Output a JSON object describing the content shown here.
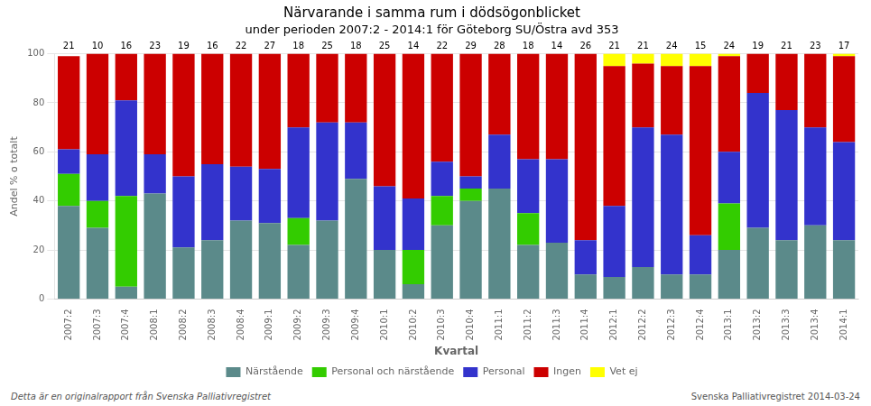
{
  "chart_data": {
    "type": "bar",
    "stacked": true,
    "title": "Närvarande i samma rum i dödsögonblicket",
    "subtitle": "under perioden 2007:2 - 2014:1 för Göteborg SU/Östra avd 353",
    "xlabel": "Kvartal",
    "ylabel": "Andel % o totalt",
    "categories": [
      "2007:2",
      "2007:3",
      "2007:4",
      "2008:1",
      "2008:2",
      "2008:3",
      "2008:4",
      "2009:1",
      "2009:2",
      "2009:3",
      "2009:4",
      "2010:1",
      "2010:2",
      "2010:3",
      "2010:4",
      "2011:1",
      "2011:2",
      "2011:3",
      "2011:4",
      "2012:1",
      "2012:2",
      "2012:3",
      "2012:4",
      "2013:1",
      "2013:2",
      "2013:3",
      "2013:4",
      "2014:1"
    ],
    "series": [
      {
        "name": "Närstående",
        "color": "#5B8A8A",
        "values": [
          38,
          29,
          5,
          43,
          21,
          24,
          32,
          31,
          22,
          32,
          49,
          20,
          6,
          30,
          40,
          45,
          22,
          23,
          10,
          9,
          13,
          10,
          10,
          20,
          29,
          24,
          30,
          24
        ]
      },
      {
        "name": "Personal och närstående",
        "color": "#33CC00",
        "values": [
          13,
          11,
          37,
          0,
          0,
          0,
          0,
          0,
          11,
          0,
          0,
          0,
          14,
          12,
          5,
          0,
          13,
          0,
          0,
          0,
          0,
          0,
          0,
          19,
          0,
          0,
          0,
          0
        ]
      },
      {
        "name": "Personal",
        "color": "#3333CC",
        "values": [
          10,
          19,
          39,
          16,
          29,
          31,
          22,
          22,
          37,
          40,
          23,
          26,
          21,
          14,
          5,
          22,
          22,
          34,
          14,
          29,
          57,
          57,
          16,
          21,
          55,
          53,
          40,
          40
        ]
      },
      {
        "name": "Ingen",
        "color": "#CC0000",
        "values": [
          38,
          41,
          19,
          41,
          50,
          45,
          46,
          47,
          30,
          28,
          28,
          54,
          59,
          44,
          50,
          33,
          43,
          43,
          76,
          57,
          26,
          28,
          69,
          39,
          16,
          23,
          30,
          35
        ]
      },
      {
        "name": "Vet ej",
        "color": "#FFFF00",
        "values": [
          0,
          0,
          0,
          0,
          0,
          0,
          0,
          0,
          0,
          0,
          0,
          0,
          0,
          0,
          0,
          0,
          0,
          0,
          0,
          5,
          4,
          5,
          5,
          1,
          0,
          0,
          0,
          1
        ]
      }
    ],
    "n_values": [
      21,
      10,
      16,
      23,
      19,
      16,
      22,
      27,
      18,
      25,
      18,
      25,
      14,
      22,
      29,
      28,
      18,
      14,
      26,
      21,
      21,
      24,
      15,
      24,
      19,
      21,
      23,
      17
    ],
    "annotations": [
      "Detta är en originalrapport från Svenska Palliativregistret",
      "Svenska Palliativregistret 2014-03-24"
    ],
    "ylim": [
      0,
      100
    ],
    "yticks": [
      0,
      20,
      40,
      60,
      80,
      100
    ],
    "grid": true,
    "legend": "bottom"
  }
}
